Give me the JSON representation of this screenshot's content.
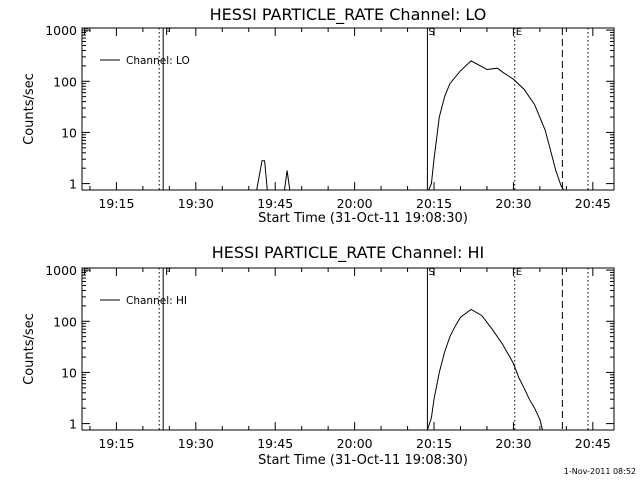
{
  "chart_data": [
    {
      "type": "line",
      "title": "HESSI PARTICLE_RATE Channel: LO",
      "xlabel": "Start Time (31-Oct-11 19:08:30)",
      "ylabel": "Counts/sec",
      "x_unit": "minutes",
      "xlim": [
        "19:08:30",
        "20:49:00"
      ],
      "xticks": [
        "19:15",
        "19:30",
        "19:45",
        "20:00",
        "20:15",
        "20:30",
        "20:45"
      ],
      "yscale": "log",
      "ylim": [
        0.75,
        1100
      ],
      "yticks": [
        "1",
        "10",
        "100",
        "1000"
      ],
      "legend": {
        "placement": "top-left",
        "entries": [
          "Channel: LO"
        ]
      },
      "series": [
        {
          "name": "Channel: LO",
          "x": [
            "19:41:30",
            "19:42:30",
            "19:43:00",
            "19:43:30",
            "19:44:00",
            "19:45:00",
            "19:46:00",
            "19:46:45",
            "19:47:15",
            "19:47:45",
            "19:48:15",
            "20:14:00",
            "20:14:30",
            "20:15:00",
            "20:16:00",
            "20:17:00",
            "20:18:00",
            "20:20:00",
            "20:22:00",
            "20:25:00",
            "20:27:00",
            "20:28:00",
            "20:30:00",
            "20:32:00",
            "20:34:00",
            "20:36:00",
            "20:37:00",
            "20:38:00",
            "20:39:00",
            "20:39:30"
          ],
          "y": [
            0.75,
            2.8,
            2.8,
            0.75,
            0.75,
            0.75,
            0.75,
            0.75,
            1.8,
            0.75,
            0.75,
            0.75,
            1.0,
            3.0,
            20,
            50,
            90,
            160,
            250,
            170,
            180,
            150,
            110,
            70,
            35,
            11,
            4.5,
            1.8,
            0.9,
            0.75
          ]
        }
      ],
      "markers": [
        {
          "label": "F",
          "x": "19:08:30",
          "style": "solid"
        },
        {
          "label": "F",
          "x": "19:23:05",
          "style": "dotted"
        },
        {
          "label": "F",
          "x": "19:23:50",
          "style": "solid"
        },
        {
          "label": "S",
          "x": "20:13:45",
          "style": "solid"
        },
        {
          "label": "E",
          "x": "20:30:15",
          "style": "dotted"
        },
        {
          "label": "",
          "x": "20:39:15",
          "style": "dashed"
        },
        {
          "label": "",
          "x": "20:44:05",
          "style": "dotted"
        }
      ],
      "marker_text": {
        "f": "F",
        "s": "S",
        "e": "E"
      }
    },
    {
      "type": "line",
      "title": "HESSI PARTICLE_RATE Channel: HI",
      "xlabel": "Start Time (31-Oct-11 19:08:30)",
      "ylabel": "Counts/sec",
      "x_unit": "minutes",
      "xlim": [
        "19:08:30",
        "20:49:00"
      ],
      "xticks": [
        "19:15",
        "19:30",
        "19:45",
        "20:00",
        "20:15",
        "20:30",
        "20:45"
      ],
      "yscale": "log",
      "ylim": [
        0.75,
        1100
      ],
      "yticks": [
        "1",
        "10",
        "100",
        "1000"
      ],
      "legend": {
        "placement": "top-left",
        "entries": [
          "Channel: HI"
        ]
      },
      "series": [
        {
          "name": "Channel: HI",
          "x": [
            "20:13:45",
            "20:14:30",
            "20:15:00",
            "20:16:00",
            "20:17:00",
            "20:18:00",
            "20:19:00",
            "20:20:00",
            "20:22:00",
            "20:24:00",
            "20:26:00",
            "20:28:00",
            "20:30:00",
            "20:31:00",
            "20:32:00",
            "20:33:00",
            "20:34:00",
            "20:35:00",
            "20:35:30"
          ],
          "y": [
            0.75,
            1.3,
            3.0,
            10,
            25,
            50,
            80,
            120,
            170,
            130,
            70,
            35,
            15,
            8,
            5,
            3,
            2,
            1.2,
            0.75
          ]
        }
      ],
      "markers": [
        {
          "label": "F",
          "x": "19:08:30",
          "style": "solid"
        },
        {
          "label": "F",
          "x": "19:23:05",
          "style": "dotted"
        },
        {
          "label": "F",
          "x": "19:23:50",
          "style": "solid"
        },
        {
          "label": "S",
          "x": "20:13:45",
          "style": "solid"
        },
        {
          "label": "E",
          "x": "20:30:15",
          "style": "dotted"
        },
        {
          "label": "",
          "x": "20:39:15",
          "style": "dashed"
        },
        {
          "label": "",
          "x": "20:44:05",
          "style": "dotted"
        }
      ],
      "marker_text": {
        "f": "F",
        "s": "S",
        "e": "E"
      }
    }
  ],
  "timestamp": "1-Nov-2011 08:52"
}
